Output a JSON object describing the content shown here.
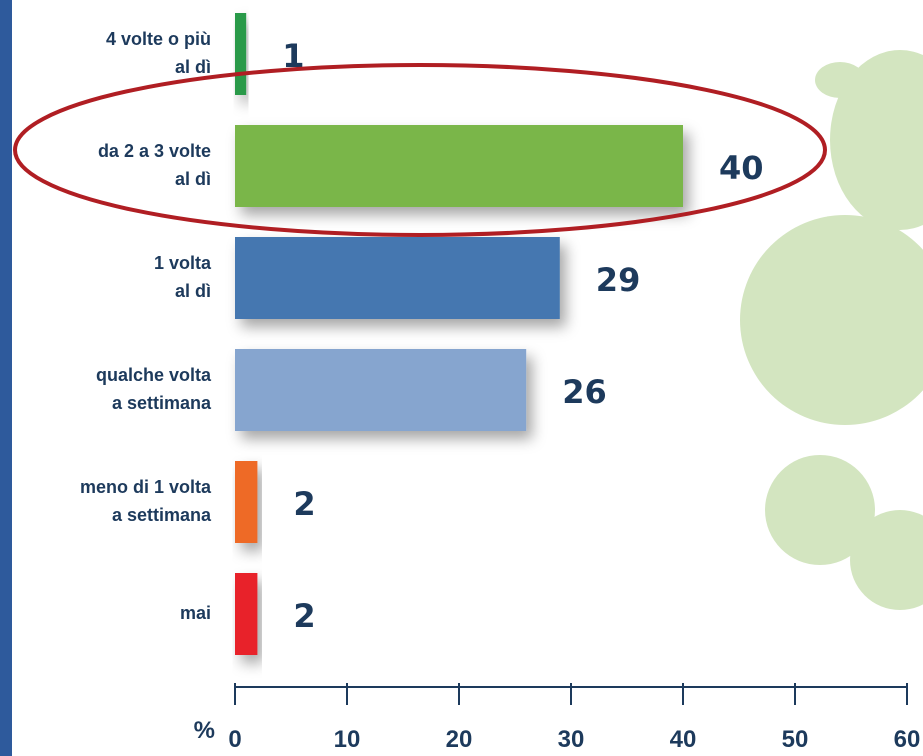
{
  "chart_data": {
    "type": "bar",
    "orientation": "horizontal",
    "categories": [
      [
        "4 volte o più",
        "al dì"
      ],
      [
        "da 2 a 3 volte",
        "al dì"
      ],
      [
        "1 volta",
        "al dì"
      ],
      [
        "qualche volta",
        "a settimana"
      ],
      [
        "meno di 1 volta",
        "a settimana"
      ],
      [
        "mai"
      ]
    ],
    "values": [
      1,
      40,
      29,
      26,
      2,
      2
    ],
    "colors": [
      "#2a9a4a",
      "#7ab648",
      "#4577b0",
      "#86a5cf",
      "#ee6a25",
      "#e8242c"
    ],
    "xlabel": "%",
    "xlim": [
      0,
      60
    ],
    "xticks": [
      0,
      10,
      20,
      30,
      40,
      50,
      60
    ]
  }
}
